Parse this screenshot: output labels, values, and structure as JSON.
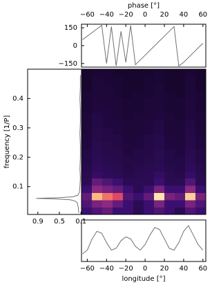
{
  "chart_data": [
    {
      "type": "line",
      "title": "phase [°]",
      "color": "#707070",
      "xlim": [
        -66,
        63
      ],
      "ylim": [
        -180,
        180
      ],
      "xticks": [
        {
          "value": -60,
          "label": "−60"
        },
        {
          "value": -40,
          "label": "−40"
        },
        {
          "value": -20,
          "label": "−20"
        },
        0,
        20,
        40,
        60
      ],
      "yticks": [
        150,
        0,
        {
          "value": -150,
          "label": "−150"
        }
      ],
      "x": [
        -65,
        -60,
        -55,
        -50,
        -45,
        -40,
        -35,
        -30,
        -25,
        -20,
        -15,
        -10,
        -5,
        0,
        5,
        10,
        15,
        20,
        25,
        30,
        35,
        40,
        45,
        50,
        55,
        60
      ],
      "values": [
        50,
        80,
        110,
        140,
        170,
        -150,
        160,
        -170,
        120,
        -140,
        170,
        -160,
        -120,
        -80,
        -40,
        0,
        40,
        80,
        120,
        160,
        -170,
        -140,
        -100,
        -60,
        -20,
        20
      ]
    },
    {
      "type": "heatmap",
      "colormap": "magma",
      "xlim": [
        -66,
        63
      ],
      "ylim": [
        0.005,
        0.5
      ],
      "z": [
        [
          0.2,
          0.25,
          0.3,
          0.2,
          0.2,
          0.15,
          0.2,
          0.25,
          0.2,
          0.15,
          0.25,
          0.2
        ],
        [
          0.25,
          0.35,
          0.4,
          0.3,
          0.2,
          0.15,
          0.2,
          0.35,
          0.2,
          0.2,
          0.35,
          0.25
        ],
        [
          0.3,
          0.85,
          0.7,
          0.6,
          0.25,
          0.2,
          0.3,
          0.95,
          0.35,
          0.3,
          0.9,
          0.35
        ],
        [
          0.2,
          0.4,
          0.35,
          0.3,
          0.2,
          0.15,
          0.2,
          0.35,
          0.2,
          0.2,
          0.4,
          0.2
        ],
        [
          0.15,
          0.3,
          0.25,
          0.2,
          0.15,
          0.15,
          0.15,
          0.2,
          0.15,
          0.15,
          0.25,
          0.15
        ],
        [
          0.14,
          0.18,
          0.16,
          0.15,
          0.13,
          0.14,
          0.15,
          0.17,
          0.14,
          0.13,
          0.18,
          0.14
        ],
        [
          0.13,
          0.16,
          0.15,
          0.14,
          0.12,
          0.13,
          0.14,
          0.15,
          0.13,
          0.12,
          0.16,
          0.13
        ],
        [
          0.12,
          0.15,
          0.14,
          0.13,
          0.12,
          0.12,
          0.13,
          0.14,
          0.12,
          0.12,
          0.15,
          0.12
        ],
        [
          0.12,
          0.14,
          0.13,
          0.13,
          0.11,
          0.12,
          0.12,
          0.14,
          0.12,
          0.11,
          0.14,
          0.12
        ],
        [
          0.11,
          0.14,
          0.13,
          0.12,
          0.11,
          0.11,
          0.12,
          0.13,
          0.11,
          0.11,
          0.13,
          0.11
        ],
        [
          0.11,
          0.13,
          0.12,
          0.12,
          0.1,
          0.11,
          0.12,
          0.13,
          0.11,
          0.1,
          0.13,
          0.11
        ],
        [
          0.1,
          0.13,
          0.12,
          0.11,
          0.1,
          0.1,
          0.11,
          0.12,
          0.1,
          0.1,
          0.12,
          0.1
        ],
        [
          0.1,
          0.12,
          0.11,
          0.11,
          0.1,
          0.1,
          0.11,
          0.12,
          0.1,
          0.1,
          0.12,
          0.1
        ],
        [
          0.1,
          0.12,
          0.11,
          0.1,
          0.09,
          0.1,
          0.1,
          0.11,
          0.1,
          0.09,
          0.11,
          0.1
        ],
        [
          0.09,
          0.11,
          0.11,
          0.1,
          0.09,
          0.09,
          0.1,
          0.11,
          0.09,
          0.09,
          0.11,
          0.09
        ],
        [
          0.09,
          0.11,
          0.1,
          0.1,
          0.09,
          0.09,
          0.1,
          0.1,
          0.09,
          0.09,
          0.11,
          0.09
        ],
        [
          0.09,
          0.1,
          0.1,
          0.09,
          0.08,
          0.09,
          0.09,
          0.1,
          0.09,
          0.08,
          0.1,
          0.09
        ],
        [
          0.08,
          0.1,
          0.1,
          0.09,
          0.08,
          0.08,
          0.09,
          0.1,
          0.08,
          0.08,
          0.1,
          0.08
        ],
        [
          0.08,
          0.1,
          0.09,
          0.09,
          0.08,
          0.08,
          0.09,
          0.09,
          0.08,
          0.08,
          0.1,
          0.08
        ],
        [
          0.08,
          0.09,
          0.09,
          0.08,
          0.08,
          0.08,
          0.08,
          0.09,
          0.08,
          0.08,
          0.09,
          0.08
        ]
      ]
    },
    {
      "type": "line",
      "orientation": "horizontal",
      "ylabel": "frequency [1/P]",
      "color": "#707070",
      "xlim": [
        1.09,
        0.09
      ],
      "ylim": [
        0.005,
        0.5
      ],
      "xticks": [
        0.9,
        0.5,
        0.1
      ],
      "yticks": [
        0.1,
        0.2,
        0.3,
        0.4
      ],
      "x": [
        0.01,
        0.03,
        0.045,
        0.05,
        0.055,
        0.058,
        0.06,
        0.062,
        0.065,
        0.07,
        0.08,
        0.1,
        0.13,
        0.16,
        0.2,
        0.24,
        0.28,
        0.32,
        0.36,
        0.4,
        0.44,
        0.48
      ],
      "values": [
        0.14,
        0.15,
        0.17,
        0.2,
        0.3,
        0.6,
        0.93,
        0.5,
        0.25,
        0.16,
        0.13,
        0.12,
        0.11,
        0.12,
        0.11,
        0.11,
        0.12,
        0.11,
        0.11,
        0.12,
        0.11,
        0.11
      ]
    },
    {
      "type": "line",
      "xlabel": "longitude [°]",
      "color": "#707070",
      "xlim": [
        -66,
        63
      ],
      "ylim": [
        0,
        1.1
      ],
      "xticks": [
        {
          "value": -60,
          "label": "−60"
        },
        {
          "value": -40,
          "label": "−40"
        },
        {
          "value": -20,
          "label": "−20"
        },
        0,
        20,
        40,
        60
      ],
      "x": [
        -65,
        -60,
        -55,
        -50,
        -45,
        -40,
        -35,
        -30,
        -25,
        -20,
        -15,
        -10,
        -5,
        0,
        5,
        10,
        15,
        20,
        25,
        30,
        35,
        40,
        45,
        50,
        55,
        60
      ],
      "values": [
        0.2,
        0.3,
        0.6,
        0.8,
        0.75,
        0.5,
        0.3,
        0.35,
        0.55,
        0.65,
        0.6,
        0.4,
        0.3,
        0.45,
        0.7,
        0.9,
        0.85,
        0.6,
        0.35,
        0.3,
        0.5,
        0.8,
        0.95,
        0.7,
        0.45,
        0.3
      ]
    }
  ]
}
